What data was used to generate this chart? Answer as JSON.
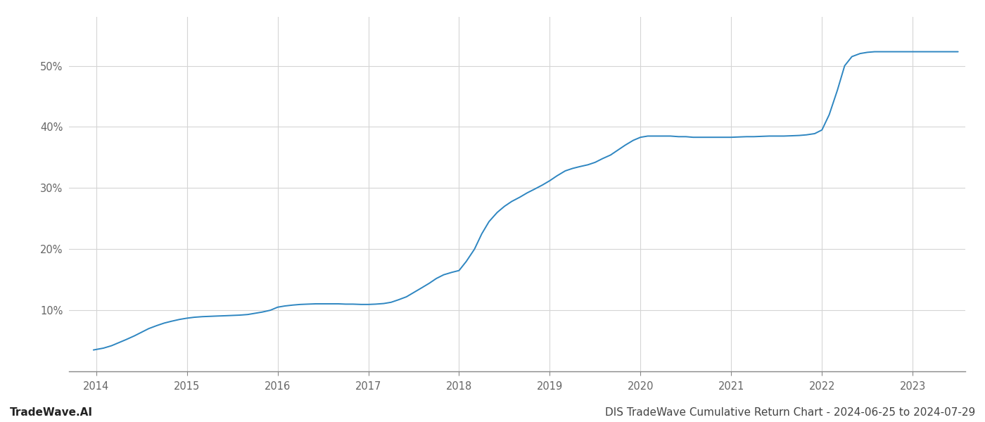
{
  "title": "DIS TradeWave Cumulative Return Chart - 2024-06-25 to 2024-07-29",
  "watermark": "TradeWave.AI",
  "line_color": "#2e86c1",
  "background_color": "#ffffff",
  "grid_color": "#d5d5d5",
  "x_values": [
    2013.97,
    2014.08,
    2014.17,
    2014.25,
    2014.33,
    2014.42,
    2014.5,
    2014.58,
    2014.67,
    2014.75,
    2014.83,
    2014.92,
    2015.0,
    2015.08,
    2015.17,
    2015.25,
    2015.33,
    2015.42,
    2015.5,
    2015.58,
    2015.67,
    2015.75,
    2015.83,
    2015.92,
    2016.0,
    2016.08,
    2016.17,
    2016.25,
    2016.33,
    2016.42,
    2016.5,
    2016.58,
    2016.67,
    2016.75,
    2016.83,
    2016.92,
    2017.0,
    2017.08,
    2017.17,
    2017.25,
    2017.33,
    2017.42,
    2017.5,
    2017.58,
    2017.67,
    2017.75,
    2017.83,
    2017.92,
    2018.0,
    2018.08,
    2018.17,
    2018.25,
    2018.33,
    2018.42,
    2018.5,
    2018.58,
    2018.67,
    2018.75,
    2018.83,
    2018.92,
    2019.0,
    2019.08,
    2019.17,
    2019.25,
    2019.33,
    2019.42,
    2019.5,
    2019.58,
    2019.67,
    2019.75,
    2019.83,
    2019.92,
    2020.0,
    2020.08,
    2020.17,
    2020.25,
    2020.33,
    2020.42,
    2020.5,
    2020.58,
    2020.67,
    2020.75,
    2020.83,
    2020.92,
    2021.0,
    2021.08,
    2021.17,
    2021.25,
    2021.33,
    2021.42,
    2021.5,
    2021.58,
    2021.67,
    2021.75,
    2021.83,
    2021.92,
    2022.0,
    2022.08,
    2022.17,
    2022.25,
    2022.33,
    2022.42,
    2022.5,
    2022.58,
    2022.67,
    2022.75,
    2022.83,
    2022.92,
    2023.0,
    2023.08,
    2023.17,
    2023.25,
    2023.33,
    2023.42,
    2023.5
  ],
  "y_values": [
    3.5,
    3.8,
    4.2,
    4.7,
    5.2,
    5.8,
    6.4,
    7.0,
    7.5,
    7.9,
    8.2,
    8.5,
    8.7,
    8.85,
    8.95,
    9.0,
    9.05,
    9.1,
    9.15,
    9.2,
    9.3,
    9.5,
    9.7,
    10.0,
    10.5,
    10.7,
    10.85,
    10.95,
    11.0,
    11.05,
    11.05,
    11.05,
    11.05,
    11.0,
    11.0,
    10.95,
    10.95,
    11.0,
    11.1,
    11.3,
    11.7,
    12.2,
    12.9,
    13.6,
    14.4,
    15.2,
    15.8,
    16.2,
    16.5,
    18.0,
    20.0,
    22.5,
    24.5,
    26.0,
    27.0,
    27.8,
    28.5,
    29.2,
    29.8,
    30.5,
    31.2,
    32.0,
    32.8,
    33.2,
    33.5,
    33.8,
    34.2,
    34.8,
    35.4,
    36.2,
    37.0,
    37.8,
    38.3,
    38.5,
    38.5,
    38.5,
    38.5,
    38.4,
    38.4,
    38.3,
    38.3,
    38.3,
    38.3,
    38.3,
    38.3,
    38.35,
    38.4,
    38.4,
    38.45,
    38.5,
    38.5,
    38.5,
    38.55,
    38.6,
    38.7,
    38.9,
    39.5,
    42.0,
    46.0,
    50.0,
    51.5,
    52.0,
    52.2,
    52.3,
    52.3,
    52.3,
    52.3,
    52.3,
    52.3,
    52.3,
    52.3,
    52.3,
    52.3,
    52.3,
    52.3
  ],
  "xlim": [
    2013.7,
    2023.58
  ],
  "ylim": [
    0,
    58
  ],
  "yticks": [
    10,
    20,
    30,
    40,
    50
  ],
  "xticks": [
    2014,
    2015,
    2016,
    2017,
    2018,
    2019,
    2020,
    2021,
    2022,
    2023
  ],
  "line_width": 1.4,
  "title_fontsize": 11,
  "watermark_fontsize": 11,
  "tick_fontsize": 10.5,
  "axis_color": "#888888",
  "tick_label_color": "#666666"
}
